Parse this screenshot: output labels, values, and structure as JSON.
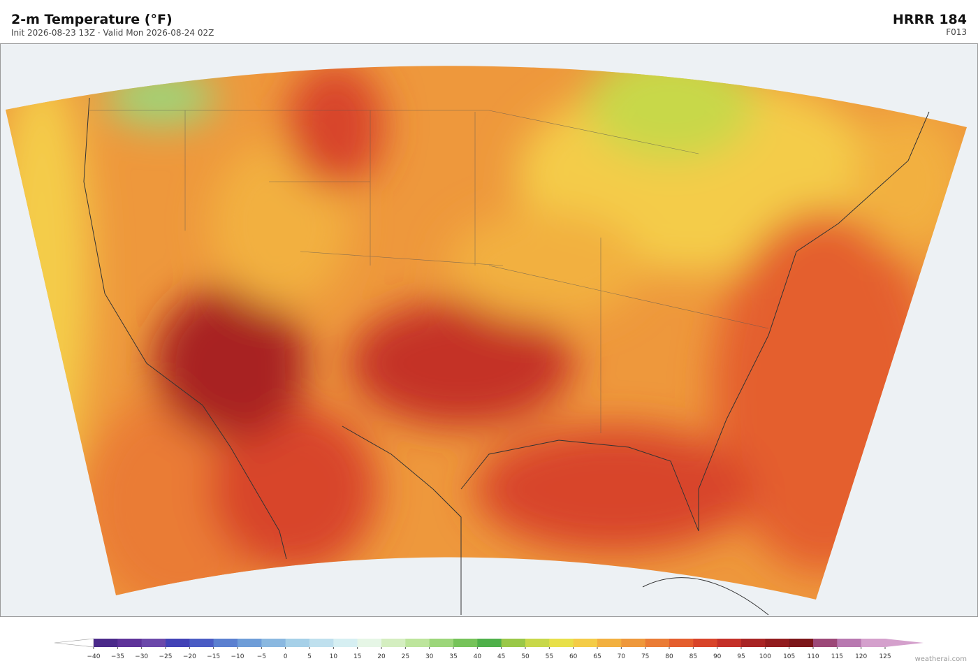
{
  "header": {
    "title": "2-m Temperature  (°F)",
    "subtitle": "Init 2026-08-23 13Z  ·  Valid Mon 2026-08-24 02Z",
    "model": "HRRR  184",
    "forecast_hour": "F013"
  },
  "colorbar": {
    "ticks": [
      {
        "value": -40,
        "label": "−40"
      },
      {
        "value": -35,
        "label": "−35"
      },
      {
        "value": -30,
        "label": "−30"
      },
      {
        "value": -25,
        "label": "−25"
      },
      {
        "value": -20,
        "label": "−20"
      },
      {
        "value": -15,
        "label": "−15"
      },
      {
        "value": -10,
        "label": "−10"
      },
      {
        "value": -5,
        "label": "−5"
      },
      0,
      5,
      10,
      15,
      20,
      25,
      30,
      35,
      40,
      45,
      50,
      55,
      60,
      65,
      70,
      75,
      80,
      85,
      90,
      95,
      100,
      105,
      110,
      115,
      120,
      125
    ],
    "colors": [
      "#4b2a8a",
      "#5e3399",
      "#6b48aa",
      "#4242b6",
      "#4a5cc4",
      "#5b80d0",
      "#6e9dd8",
      "#8ab8e0",
      "#a6d0e8",
      "#bfe0ee",
      "#d6eff2",
      "#e6f6e6",
      "#d4eec0",
      "#bde59c",
      "#9cd67a",
      "#76c35a",
      "#4fb04a",
      "#9ac848",
      "#c8d84a",
      "#e8e04a",
      "#f4cc48",
      "#f2b040",
      "#ee983c",
      "#ea7c36",
      "#e45e2e",
      "#d8442a",
      "#c43028",
      "#a82424",
      "#921c1e",
      "#7c161a",
      "#9c4878",
      "#b878b0",
      "#d4a0cc"
    ],
    "under_color": "#ffffff",
    "over_color": "#d4a0cc"
  },
  "credit": "weatherai.com"
}
